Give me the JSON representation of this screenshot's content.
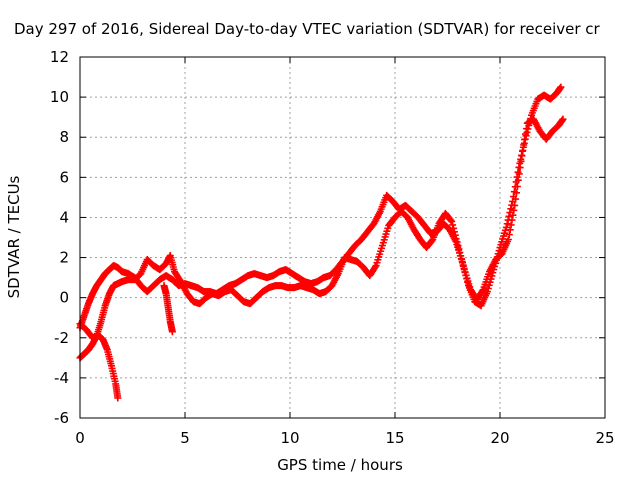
{
  "chart_data": {
    "type": "scatter",
    "title": "Day 297 of 2016, Sidereal Day-to-day VTEC variation (SDTVAR) for receiver cr",
    "xlabel": "GPS time / hours",
    "ylabel": "SDTVAR / TECUs",
    "xlim": [
      0,
      25
    ],
    "ylim": [
      -6,
      12
    ],
    "xticks": [
      "0",
      "5",
      "10",
      "15",
      "20",
      "25"
    ],
    "yticks": [
      "-6",
      "-4",
      "-2",
      "0",
      "2",
      "4",
      "6",
      "8",
      "10",
      "12"
    ],
    "grid": true,
    "marker": "+",
    "series_color": "#ff0000",
    "series": [
      {
        "name": "",
        "points": [
          [
            0.0,
            -1.5
          ],
          [
            0.2,
            -0.9
          ],
          [
            0.4,
            -0.3
          ],
          [
            0.6,
            0.2
          ],
          [
            0.8,
            0.6
          ],
          [
            1.0,
            0.9
          ],
          [
            1.2,
            1.2
          ],
          [
            1.4,
            1.4
          ],
          [
            1.6,
            1.6
          ],
          [
            1.8,
            1.5
          ],
          [
            2.0,
            1.3
          ],
          [
            2.3,
            1.2
          ],
          [
            2.6,
            1.0
          ],
          [
            2.9,
            0.6
          ],
          [
            3.2,
            0.3
          ],
          [
            3.5,
            0.6
          ],
          [
            3.8,
            0.9
          ],
          [
            4.1,
            1.1
          ],
          [
            4.4,
            0.9
          ],
          [
            4.7,
            0.6
          ],
          [
            5.0,
            0.7
          ],
          [
            5.3,
            0.6
          ],
          [
            5.6,
            0.5
          ],
          [
            5.9,
            0.3
          ],
          [
            6.2,
            0.3
          ],
          [
            6.5,
            0.2
          ],
          [
            6.8,
            0.4
          ],
          [
            7.1,
            0.6
          ],
          [
            7.4,
            0.7
          ],
          [
            7.7,
            0.9
          ],
          [
            8.0,
            1.1
          ],
          [
            8.3,
            1.2
          ],
          [
            8.6,
            1.1
          ],
          [
            8.9,
            1.0
          ],
          [
            9.2,
            1.1
          ],
          [
            9.5,
            1.3
          ],
          [
            9.8,
            1.4
          ],
          [
            10.1,
            1.2
          ],
          [
            10.4,
            1.0
          ],
          [
            10.7,
            0.8
          ],
          [
            11.0,
            0.7
          ],
          [
            11.3,
            0.8
          ],
          [
            11.6,
            1.0
          ],
          [
            11.9,
            1.1
          ],
          [
            12.2,
            1.4
          ],
          [
            12.5,
            1.8
          ],
          [
            12.8,
            2.2
          ],
          [
            13.1,
            2.6
          ],
          [
            13.4,
            2.9
          ],
          [
            13.7,
            3.3
          ],
          [
            14.0,
            3.7
          ],
          [
            14.3,
            4.3
          ],
          [
            14.6,
            5.1
          ],
          [
            14.9,
            4.8
          ],
          [
            15.2,
            4.4
          ],
          [
            15.5,
            4.6
          ],
          [
            15.8,
            4.3
          ],
          [
            16.1,
            4.0
          ],
          [
            16.4,
            3.6
          ],
          [
            16.7,
            3.2
          ],
          [
            17.0,
            3.3
          ],
          [
            17.3,
            3.7
          ],
          [
            17.6,
            3.4
          ],
          [
            17.9,
            2.8
          ],
          [
            18.2,
            1.8
          ],
          [
            18.5,
            0.6
          ],
          [
            18.8,
            -0.2
          ],
          [
            19.1,
            -0.4
          ],
          [
            19.4,
            0.3
          ],
          [
            19.7,
            1.4
          ],
          [
            20.0,
            2.5
          ],
          [
            20.3,
            3.5
          ],
          [
            20.6,
            4.8
          ],
          [
            20.9,
            6.5
          ],
          [
            21.2,
            7.9
          ],
          [
            21.5,
            9.1
          ],
          [
            21.8,
            9.9
          ],
          [
            22.1,
            10.1
          ],
          [
            22.4,
            9.9
          ],
          [
            22.7,
            10.2
          ],
          [
            22.9,
            10.5
          ]
        ]
      },
      {
        "name": "",
        "points": [
          [
            0.0,
            -3.0
          ],
          [
            0.2,
            -2.8
          ],
          [
            0.4,
            -2.6
          ],
          [
            0.6,
            -2.3
          ],
          [
            0.8,
            -1.9
          ],
          [
            1.0,
            -1.2
          ],
          [
            1.2,
            -0.4
          ],
          [
            1.4,
            0.2
          ],
          [
            1.6,
            0.6
          ],
          [
            1.8,
            0.7
          ],
          [
            2.0,
            0.8
          ],
          [
            2.3,
            0.9
          ],
          [
            2.6,
            0.9
          ],
          [
            2.9,
            1.2
          ],
          [
            3.2,
            1.9
          ],
          [
            3.5,
            1.6
          ],
          [
            3.8,
            1.4
          ],
          [
            4.1,
            1.7
          ],
          [
            4.3,
            2.1
          ],
          [
            4.5,
            1.3
          ],
          [
            4.8,
            0.8
          ],
          [
            5.1,
            0.2
          ],
          [
            5.4,
            -0.2
          ],
          [
            5.7,
            -0.3
          ],
          [
            6.0,
            0.0
          ],
          [
            6.3,
            0.2
          ],
          [
            6.6,
            0.1
          ],
          [
            6.9,
            0.3
          ],
          [
            7.2,
            0.4
          ],
          [
            7.5,
            0.1
          ],
          [
            7.8,
            -0.2
          ],
          [
            8.1,
            -0.3
          ],
          [
            8.4,
            0.0
          ],
          [
            8.7,
            0.3
          ],
          [
            9.0,
            0.5
          ],
          [
            9.3,
            0.6
          ],
          [
            9.6,
            0.6
          ],
          [
            9.9,
            0.5
          ],
          [
            10.2,
            0.5
          ],
          [
            10.5,
            0.6
          ],
          [
            10.8,
            0.5
          ],
          [
            11.1,
            0.4
          ],
          [
            11.4,
            0.2
          ],
          [
            11.7,
            0.3
          ],
          [
            12.0,
            0.6
          ],
          [
            12.3,
            1.2
          ],
          [
            12.6,
            2.0
          ],
          [
            12.9,
            1.9
          ],
          [
            13.2,
            1.8
          ],
          [
            13.5,
            1.5
          ],
          [
            13.8,
            1.1
          ],
          [
            14.1,
            1.6
          ],
          [
            14.4,
            2.6
          ],
          [
            14.7,
            3.6
          ],
          [
            15.0,
            4.0
          ],
          [
            15.3,
            4.3
          ],
          [
            15.6,
            4.0
          ],
          [
            15.9,
            3.4
          ],
          [
            16.2,
            2.9
          ],
          [
            16.5,
            2.5
          ],
          [
            16.8,
            2.9
          ],
          [
            17.1,
            3.7
          ],
          [
            17.4,
            4.2
          ],
          [
            17.7,
            3.8
          ],
          [
            18.0,
            2.6
          ],
          [
            18.3,
            1.4
          ],
          [
            18.6,
            0.4
          ],
          [
            18.9,
            -0.1
          ],
          [
            19.2,
            0.4
          ],
          [
            19.5,
            1.3
          ],
          [
            19.8,
            1.9
          ],
          [
            20.1,
            2.2
          ],
          [
            20.4,
            2.9
          ],
          [
            20.7,
            4.6
          ],
          [
            21.0,
            6.8
          ],
          [
            21.3,
            8.7
          ],
          [
            21.6,
            8.9
          ],
          [
            21.9,
            8.3
          ],
          [
            22.2,
            7.9
          ],
          [
            22.5,
            8.3
          ],
          [
            22.8,
            8.6
          ],
          [
            23.0,
            8.9
          ]
        ]
      },
      {
        "name": "",
        "points": [
          [
            0.0,
            -1.3
          ],
          [
            0.3,
            -1.6
          ],
          [
            0.6,
            -2.0
          ],
          [
            0.9,
            -1.9
          ],
          [
            1.1,
            -2.1
          ],
          [
            1.3,
            -2.6
          ],
          [
            1.5,
            -3.4
          ],
          [
            1.7,
            -4.3
          ],
          [
            1.8,
            -5.0
          ]
        ]
      },
      {
        "name": "",
        "points": [
          [
            4.0,
            0.6
          ],
          [
            4.1,
            0.2
          ],
          [
            4.2,
            -0.5
          ],
          [
            4.3,
            -1.2
          ],
          [
            4.4,
            -1.7
          ]
        ]
      }
    ]
  }
}
